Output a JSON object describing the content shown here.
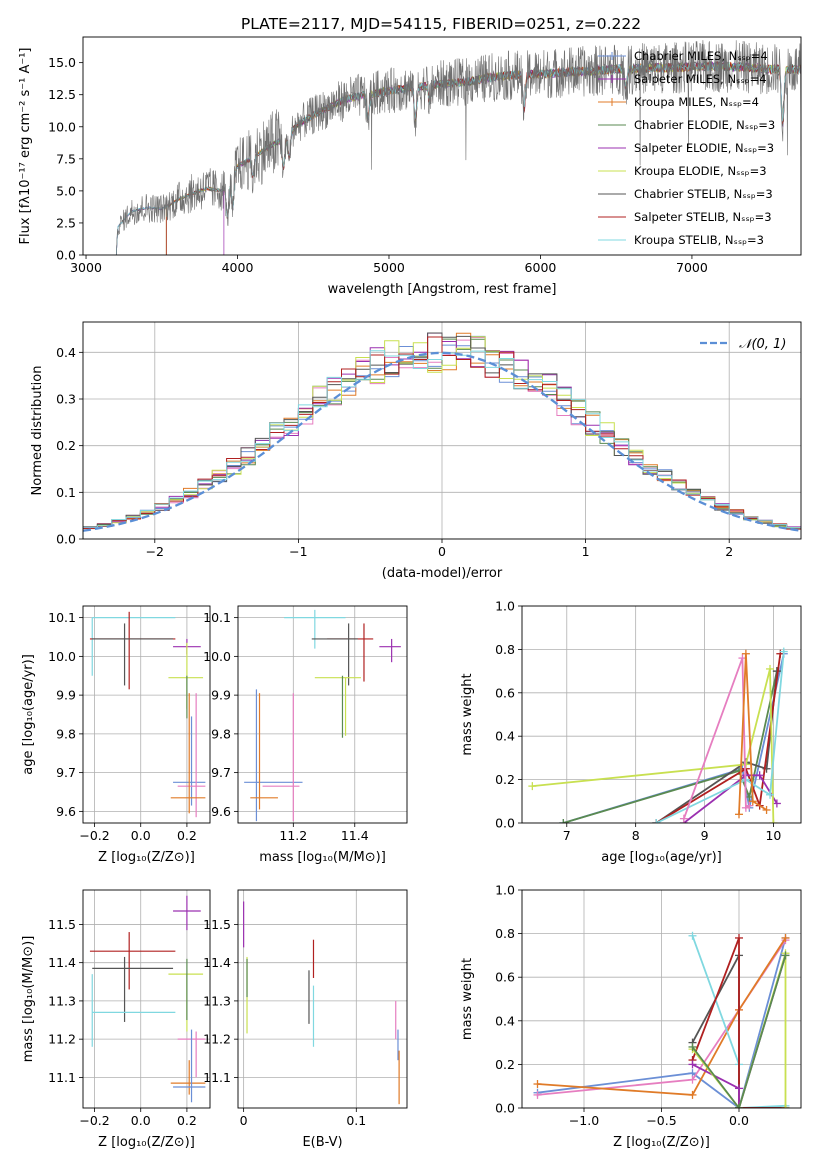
{
  "figure_title": "PLATE=2117, MJD=54115, FIBERID=0251, z=0.222",
  "colors": {
    "c0": "#6b8fd6",
    "c1": "#e07b28",
    "c2": "#e67ec0",
    "c3": "#5a8a50",
    "c4": "#9b30b0",
    "c5": "#c8e050",
    "c6": "#555555",
    "c7": "#b02020",
    "c8": "#80d8e0",
    "normal": "#5b8fd6"
  },
  "chart_data": [
    {
      "id": "spectrum",
      "type": "line",
      "xlabel": "wavelength [Angstrom, rest frame]",
      "ylabel": "Flux [fλ10⁻¹⁷ erg cm⁻² s⁻¹ A⁻¹]",
      "xlim": [
        2980,
        7720
      ],
      "ylim": [
        0,
        17
      ],
      "xticks": [
        3000,
        4000,
        5000,
        6000,
        7000
      ],
      "yticks": [
        0.0,
        2.5,
        5.0,
        7.5,
        10.0,
        12.5,
        15.0
      ],
      "grid": false,
      "legend_position": "upper-right",
      "observed_envelope": {
        "x": [
          3200,
          3210,
          3300,
          3400,
          3500,
          3550,
          3600,
          3700,
          3800,
          3900,
          3950,
          4000,
          4100,
          4200,
          4300,
          4400,
          4500,
          4600,
          4700,
          4800,
          4900,
          5000,
          5100,
          5200,
          5300,
          5400,
          5500,
          5600,
          5700,
          5800,
          5900,
          6000,
          6100,
          6200,
          6300,
          6400,
          6500,
          6600,
          6700,
          6800,
          6900,
          7000,
          7100,
          7200,
          7300,
          7400,
          7500
        ],
        "y": [
          0,
          2.2,
          3.4,
          3.7,
          3.6,
          3.9,
          4.3,
          4.8,
          5.2,
          5.0,
          6.0,
          6.9,
          7.6,
          8.4,
          9.0,
          10.2,
          10.9,
          11.5,
          12.1,
          12.4,
          12.6,
          12.8,
          13.0,
          13.1,
          13.3,
          13.4,
          13.5,
          13.7,
          13.9,
          14.0,
          14.1,
          14.1,
          14.2,
          14.3,
          14.3,
          14.4,
          14.5,
          14.5,
          14.6,
          14.6,
          14.6,
          14.7,
          14.7,
          14.7,
          14.7,
          14.6,
          14.5
        ]
      },
      "model_cutoffs": [
        3200,
        3200,
        3530,
        3530,
        3910,
        3530,
        3200,
        3530,
        3200
      ],
      "series": [
        {
          "name": "Chabrier MILES, N_SSP=4",
          "color": "c0"
        },
        {
          "name": "Salpeter MILES, N_SSP=4",
          "color": "c4"
        },
        {
          "name": "Kroupa MILES, N_SSP=4",
          "color": "c1"
        },
        {
          "name": "Chabrier ELODIE, N_SSP=3",
          "color": "c3"
        },
        {
          "name": "Salpeter ELODIE, N_SSP=3",
          "color": "c4"
        },
        {
          "name": "Kroupa ELODIE, N_SSP=3",
          "color": "c5"
        },
        {
          "name": "Chabrier STELIB, N_SSP=3",
          "color": "c6"
        },
        {
          "name": "Salpeter STELIB, N_SSP=3",
          "color": "c7"
        },
        {
          "name": "Kroupa STELIB, N_SSP=3",
          "color": "c8"
        }
      ],
      "legend_labels": [
        "Chabrier MILES, Nₛₛₚ=4",
        "Salpeter MILES, Nₛₛₚ=4",
        "Kroupa MILES, Nₛₛₚ=4",
        "Chabrier ELODIE, Nₛₛₚ=3",
        "Salpeter ELODIE, Nₛₛₚ=3",
        "Kroupa ELODIE, Nₛₛₚ=3",
        "Chabrier STELIB, Nₛₛₚ=3",
        "Salpeter STELIB, Nₛₛₚ=3",
        "Kroupa STELIB, Nₛₛₚ=3"
      ]
    },
    {
      "id": "residuals",
      "type": "line",
      "xlabel": "(data-model)/error",
      "ylabel": "Normed distribution",
      "xlim": [
        -2.5,
        2.5
      ],
      "ylim": [
        0,
        0.465
      ],
      "xticks": [
        -2,
        -1,
        0,
        1,
        2
      ],
      "yticks": [
        0.0,
        0.1,
        0.2,
        0.3,
        0.4
      ],
      "grid": true,
      "legend_position": "upper-right",
      "normal_label": "𝒩(0, 1)",
      "bin_width": 0.1,
      "bin_start": -2.5,
      "step_colors": [
        "c0",
        "c1",
        "c2",
        "c3",
        "c4",
        "c5",
        "c6",
        "c7",
        "c8"
      ]
    },
    {
      "id": "age-vs-z",
      "type": "scatter",
      "xlabel": "Z [log₁₀(Z/Z⊙)]",
      "ylabel": "age  [log₁₀(age/yr)]",
      "xlim": [
        -0.25,
        0.3
      ],
      "ylim": [
        9.57,
        10.13
      ],
      "xticks": [
        -0.2,
        0.0,
        0.2
      ],
      "xticklabels": [
        "−0.2",
        "0.0",
        "0.2"
      ],
      "yticks": [
        9.6,
        9.7,
        9.8,
        9.9,
        10.0,
        10.1
      ],
      "grid": true,
      "points": [
        {
          "color": "c8",
          "x": -0.21,
          "xerr": [
            0.0,
            0.36
          ],
          "y": 10.1,
          "yerr": [
            0.15,
            0.0
          ]
        },
        {
          "color": "c7",
          "x": -0.05,
          "xerr": [
            0.17,
            0.2
          ],
          "y": 10.045,
          "yerr": [
            0.13,
            0.07
          ]
        },
        {
          "color": "c6",
          "x": -0.07,
          "xerr": [
            0.14,
            0.21
          ],
          "y": 10.045,
          "yerr": [
            0.12,
            0.04
          ]
        },
        {
          "color": "c4",
          "x": 0.2,
          "xerr": [
            0.06,
            0.06
          ],
          "y": 10.025,
          "yerr": [
            0.02,
            0.02
          ]
        },
        {
          "color": "c5",
          "x": 0.2,
          "xerr": [
            0.08,
            0.07
          ],
          "y": 9.945,
          "yerr": [
            0.08,
            0.09
          ]
        },
        {
          "color": "c3",
          "x": 0.2,
          "xerr": [
            0.0,
            0.0
          ],
          "y": 9.9,
          "yerr": [
            0.06,
            0.05
          ]
        },
        {
          "color": "c0",
          "x": 0.22,
          "xerr": [
            0.08,
            0.06
          ],
          "y": 9.675,
          "yerr": [
            0.06,
            0.17
          ]
        },
        {
          "color": "c2",
          "x": 0.24,
          "xerr": [
            0.08,
            0.04
          ],
          "y": 9.665,
          "yerr": [
            0.08,
            0.24
          ]
        },
        {
          "color": "c1",
          "x": 0.21,
          "xerr": [
            0.08,
            0.07
          ],
          "y": 9.635,
          "yerr": [
            0.04,
            0.27
          ]
        }
      ]
    },
    {
      "id": "age-vs-mass",
      "type": "scatter",
      "xlabel": "mass [log₁₀(M/M⊙)]",
      "ylabel": "",
      "xlim": [
        11.02,
        11.57
      ],
      "ylim": [
        9.57,
        10.13
      ],
      "xticks": [
        11.2,
        11.4
      ],
      "yticks": [
        9.6,
        9.7,
        9.8,
        9.9,
        10.0,
        10.1
      ],
      "grid": true,
      "points": [
        {
          "color": "c8",
          "x": 11.27,
          "xerr": [
            0.1,
            0.1
          ],
          "y": 10.1,
          "yerr": [
            0.08,
            0.02
          ]
        },
        {
          "color": "c7",
          "x": 11.43,
          "xerr": [
            0.12,
            0.03
          ],
          "y": 10.045,
          "yerr": [
            0.11,
            0.04
          ]
        },
        {
          "color": "c6",
          "x": 11.38,
          "xerr": [
            0.12,
            0.03
          ],
          "y": 10.045,
          "yerr": [
            0.12,
            0.04
          ]
        },
        {
          "color": "c4",
          "x": 11.52,
          "xerr": [
            0.04,
            0.03
          ],
          "y": 10.025,
          "yerr": [
            0.04,
            0.02
          ]
        },
        {
          "color": "c5",
          "x": 11.37,
          "xerr": [
            0.1,
            0.05
          ],
          "y": 9.945,
          "yerr": [
            0.15,
            0.0
          ]
        },
        {
          "color": "c3",
          "x": 11.36,
          "xerr": [
            0.0,
            0.0
          ],
          "y": 9.9,
          "yerr": [
            0.11,
            0.05
          ]
        },
        {
          "color": "c0",
          "x": 11.08,
          "xerr": [
            0.04,
            0.15
          ],
          "y": 9.675,
          "yerr": [
            0.1,
            0.24
          ]
        },
        {
          "color": "c2",
          "x": 11.2,
          "xerr": [
            0.1,
            0.02
          ],
          "y": 9.665,
          "yerr": [
            0.09,
            0.24
          ]
        },
        {
          "color": "c1",
          "x": 11.09,
          "xerr": [
            0.03,
            0.06
          ],
          "y": 9.635,
          "yerr": [
            0.03,
            0.27
          ]
        }
      ]
    },
    {
      "id": "massweight-vs-age",
      "type": "line",
      "xlabel": "age  [log₁₀(age/yr)]",
      "ylabel": "mass weight",
      "xlim": [
        6.35,
        10.4
      ],
      "ylim": [
        0.0,
        1.0
      ],
      "xticks": [
        7,
        8,
        9,
        10
      ],
      "yticks": [
        0.0,
        0.2,
        0.4,
        0.6,
        0.8,
        1.0
      ],
      "grid": true,
      "series": [
        {
          "color": "c0",
          "x": [
            6.95,
            9.55,
            9.65,
            10.15
          ],
          "y": [
            0.0,
            0.25,
            0.07,
            0.78
          ]
        },
        {
          "color": "c3",
          "x": [
            6.95,
            9.5,
            9.65,
            10.05
          ],
          "y": [
            0.0,
            0.24,
            0.12,
            0.7
          ]
        },
        {
          "color": "c6",
          "x": [
            8.3,
            9.6,
            9.9,
            10.05
          ],
          "y": [
            0.0,
            0.28,
            0.25,
            0.7
          ]
        },
        {
          "color": "c7",
          "x": [
            8.3,
            9.6,
            9.8,
            10.1
          ],
          "y": [
            0.0,
            0.25,
            0.08,
            0.78
          ]
        },
        {
          "color": "c4",
          "x": [
            8.7,
            9.6,
            9.8,
            10.05
          ],
          "y": [
            0.0,
            0.22,
            0.22,
            0.09
          ]
        },
        {
          "color": "c5",
          "x": [
            6.5,
            9.6,
            9.95,
            10.0
          ],
          "y": [
            0.17,
            0.27,
            0.71,
            0.0
          ]
        },
        {
          "color": "c8",
          "x": [
            8.3,
            9.6,
            9.95,
            10.15
          ],
          "y": [
            0.0,
            0.2,
            0.13,
            0.79
          ]
        },
        {
          "color": "c2",
          "x": [
            8.7,
            9.55,
            9.6,
            9.65
          ],
          "y": [
            0.02,
            0.76,
            0.07,
            0.08
          ]
        },
        {
          "color": "c1",
          "x": [
            9.5,
            9.6,
            9.7,
            9.9
          ],
          "y": [
            0.04,
            0.78,
            0.1,
            0.06
          ]
        }
      ]
    },
    {
      "id": "mass-vs-z",
      "type": "scatter",
      "xlabel": "Z [log₁₀(Z/Z⊙)]",
      "ylabel": "mass [log₁₀(M/M⊙)]",
      "xlim": [
        -0.25,
        0.3
      ],
      "ylim": [
        11.02,
        11.59
      ],
      "xticks": [
        -0.2,
        0.0,
        0.2
      ],
      "xticklabels": [
        "−0.2",
        "0.0",
        "0.2"
      ],
      "yticks": [
        11.1,
        11.2,
        11.3,
        11.4,
        11.5
      ],
      "grid": true,
      "points": [
        {
          "color": "c4",
          "x": 0.2,
          "xerr": [
            0.06,
            0.06
          ],
          "y": 11.535,
          "yerr": [
            0.05,
            0.04
          ]
        },
        {
          "color": "c7",
          "x": -0.05,
          "xerr": [
            0.17,
            0.2
          ],
          "y": 11.43,
          "yerr": [
            0.1,
            0.05
          ]
        },
        {
          "color": "c6",
          "x": -0.07,
          "xerr": [
            0.14,
            0.21
          ],
          "y": 11.385,
          "yerr": [
            0.14,
            0.03
          ]
        },
        {
          "color": "c5",
          "x": 0.2,
          "xerr": [
            0.08,
            0.07
          ],
          "y": 11.37,
          "yerr": [
            0.15,
            0.0
          ]
        },
        {
          "color": "c3",
          "x": 0.2,
          "xerr": [
            0.0,
            0.0
          ],
          "y": 11.36,
          "yerr": [
            0.11,
            0.05
          ]
        },
        {
          "color": "c8",
          "x": -0.21,
          "xerr": [
            0.0,
            0.36
          ],
          "y": 11.27,
          "yerr": [
            0.09,
            0.1
          ]
        },
        {
          "color": "c2",
          "x": 0.24,
          "xerr": [
            0.08,
            0.04
          ],
          "y": 11.2,
          "yerr": [
            0.1,
            0.02
          ]
        },
        {
          "color": "c1",
          "x": 0.21,
          "xerr": [
            0.08,
            0.07
          ],
          "y": 11.085,
          "yerr": [
            0.03,
            0.06
          ]
        },
        {
          "color": "c0",
          "x": 0.22,
          "xerr": [
            0.08,
            0.06
          ],
          "y": 11.075,
          "yerr": [
            0.04,
            0.15
          ]
        }
      ]
    },
    {
      "id": "mass-vs-ebv",
      "type": "scatter",
      "xlabel": "E(B-V)",
      "ylabel": "",
      "xlim": [
        -0.005,
        0.145
      ],
      "ylim": [
        11.02,
        11.59
      ],
      "xticks": [
        0.0,
        0.1
      ],
      "yticks": [
        11.1,
        11.2,
        11.3,
        11.4,
        11.5
      ],
      "grid": true,
      "points": [
        {
          "color": "c4",
          "x": 0.0,
          "xerr": [
            0.0,
            0.0
          ],
          "y": 11.5,
          "yerr": [
            0.06,
            0.06
          ]
        },
        {
          "color": "c5",
          "x": 0.003,
          "xerr": [
            0.0,
            0.0
          ],
          "y": 11.315,
          "yerr": [
            0.1,
            0.1
          ]
        },
        {
          "color": "c3",
          "x": 0.003,
          "xerr": [
            0.0,
            0.0
          ],
          "y": 11.36,
          "yerr": [
            0.05,
            0.05
          ]
        },
        {
          "color": "c6",
          "x": 0.058,
          "xerr": [
            0.0,
            0.0
          ],
          "y": 11.31,
          "yerr": [
            0.07,
            0.07
          ]
        },
        {
          "color": "c7",
          "x": 0.062,
          "xerr": [
            0.0,
            0.0
          ],
          "y": 11.41,
          "yerr": [
            0.05,
            0.05
          ]
        },
        {
          "color": "c8",
          "x": 0.062,
          "xerr": [
            0.0,
            0.0
          ],
          "y": 11.26,
          "yerr": [
            0.08,
            0.08
          ]
        },
        {
          "color": "c2",
          "x": 0.135,
          "xerr": [
            0.0,
            0.0
          ],
          "y": 11.25,
          "yerr": [
            0.05,
            0.05
          ]
        },
        {
          "color": "c0",
          "x": 0.137,
          "xerr": [
            0.0,
            0.0
          ],
          "y": 11.185,
          "yerr": [
            0.04,
            0.04
          ]
        },
        {
          "color": "c1",
          "x": 0.138,
          "xerr": [
            0.0,
            0.0
          ],
          "y": 11.1,
          "yerr": [
            0.07,
            0.07
          ]
        }
      ]
    },
    {
      "id": "massweight-vs-z",
      "type": "line",
      "xlabel": "Z [log₁₀(Z/Z⊙)]",
      "ylabel": "mass weight",
      "xlim": [
        -1.4,
        0.4
      ],
      "ylim": [
        0.0,
        1.0
      ],
      "xticks": [
        -1.0,
        -0.5,
        0.0
      ],
      "xticklabels": [
        "−1.0",
        "−0.5",
        "0.0"
      ],
      "yticks": [
        0.0,
        0.2,
        0.4,
        0.6,
        0.8,
        1.0
      ],
      "grid": true,
      "series": [
        {
          "color": "c0",
          "x": [
            -1.3,
            -0.3,
            0.0,
            0.3
          ],
          "y": [
            0.07,
            0.16,
            0.0,
            0.78
          ]
        },
        {
          "color": "c2",
          "x": [
            -1.3,
            -0.3,
            0.0,
            0.3
          ],
          "y": [
            0.06,
            0.13,
            0.45,
            0.77
          ]
        },
        {
          "color": "c1",
          "x": [
            -1.3,
            -0.3,
            0.0,
            0.3
          ],
          "y": [
            0.11,
            0.06,
            0.45,
            0.78
          ]
        },
        {
          "color": "c8",
          "x": [
            -0.3,
            0.0,
            0.0,
            0.3
          ],
          "y": [
            0.79,
            0.2,
            0.0,
            0.01
          ]
        },
        {
          "color": "c6",
          "x": [
            -0.3,
            0.0,
            0.0,
            0.3
          ],
          "y": [
            0.3,
            0.7,
            0.0,
            0.0
          ]
        },
        {
          "color": "c7",
          "x": [
            -0.3,
            0.0,
            0.0,
            0.3
          ],
          "y": [
            0.22,
            0.78,
            0.0,
            0.0
          ]
        },
        {
          "color": "c4",
          "x": [
            -0.3,
            0.0,
            0.0,
            0.3
          ],
          "y": [
            0.2,
            0.09,
            0.0,
            0.7
          ]
        },
        {
          "color": "c5",
          "x": [
            -0.3,
            0.0,
            0.3,
            0.3
          ],
          "y": [
            0.27,
            0.0,
            0.71,
            0.0
          ]
        },
        {
          "color": "c3",
          "x": [
            -0.3,
            0.0,
            0.0,
            0.3
          ],
          "y": [
            0.28,
            0.0,
            0.0,
            0.7
          ]
        }
      ]
    }
  ]
}
